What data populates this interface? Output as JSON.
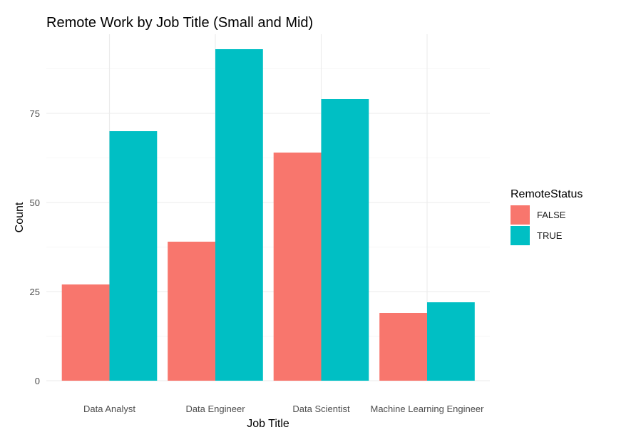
{
  "chart_data": {
    "type": "bar",
    "title": "Remote Work by Job Title (Small and Mid)",
    "xlabel": "Job Title",
    "ylabel": "Count",
    "categories": [
      "Data Analyst",
      "Data Engineer",
      "Data Scientist",
      "Machine Learning Engineer"
    ],
    "series": [
      {
        "name": "FALSE",
        "values": [
          27,
          39,
          64,
          19
        ],
        "color": "#F8766D"
      },
      {
        "name": "TRUE",
        "values": [
          70,
          93,
          79,
          22
        ],
        "color": "#00BFC4"
      }
    ],
    "ylim": [
      0,
      100
    ],
    "yticks": [
      0,
      25,
      50,
      75
    ],
    "grid": true,
    "legend": {
      "title": "RemoteStatus",
      "placement": "right",
      "entries": [
        "FALSE",
        "TRUE"
      ]
    }
  }
}
